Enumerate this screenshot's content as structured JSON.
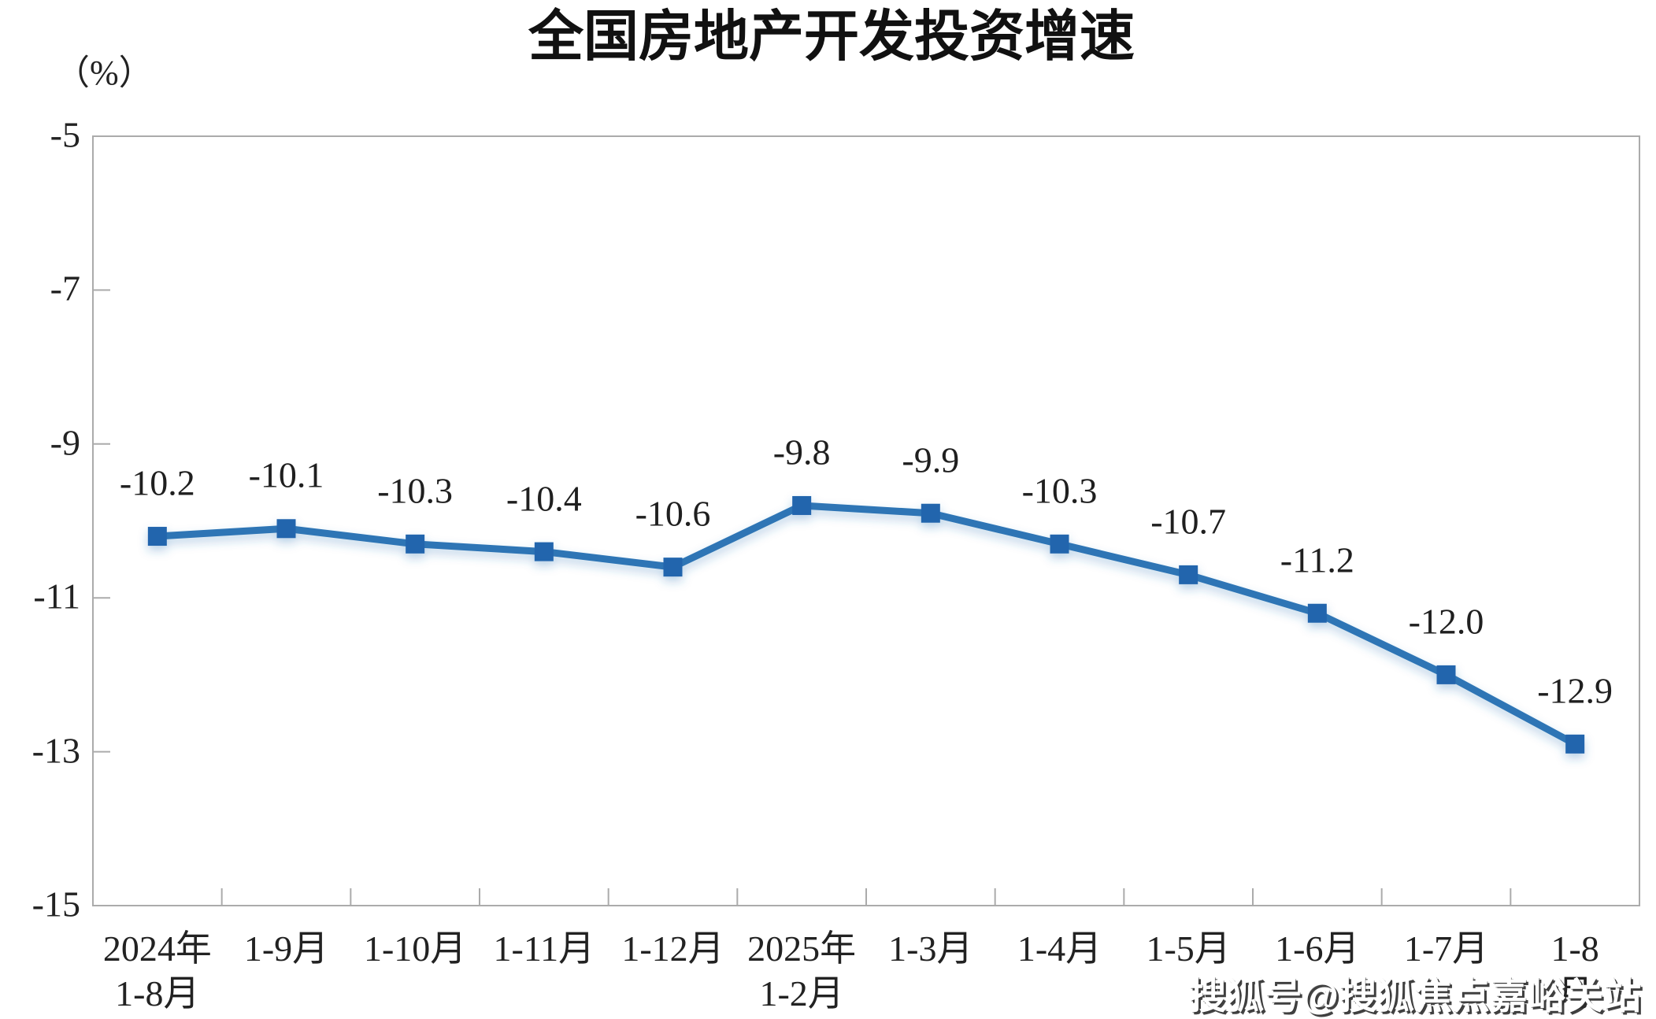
{
  "watermark": "搜狐号@搜狐焦点嘉峪关站",
  "chart_data": {
    "type": "line",
    "title": "全国房地产开发投资增速",
    "unit_label": "（%）",
    "categories": [
      "2024年\n1-8月",
      "1-9月",
      "1-10月",
      "1-11月",
      "1-12月",
      "2025年\n1-2月",
      "1-3月",
      "1-4月",
      "1-5月",
      "1-6月",
      "1-7月",
      "1-8月"
    ],
    "values": [
      -10.2,
      -10.1,
      -10.3,
      -10.4,
      -10.6,
      -9.8,
      -9.9,
      -10.3,
      -10.7,
      -11.2,
      -12.0,
      -12.9
    ],
    "point_labels": [
      "-10.2",
      "-10.1",
      "-10.3",
      "-10.4",
      "-10.6",
      "-9.8",
      "-9.9",
      "-10.3",
      "-10.7",
      "-11.2",
      "-12.0",
      "-12.9"
    ],
    "xlabel": "",
    "ylabel": "",
    "ylim": [
      -15,
      -5
    ],
    "yticks": [
      -5,
      -7,
      -9,
      -11,
      -13,
      -15
    ],
    "grid": false,
    "legend_position": "none",
    "line_color": "#2E74B5",
    "marker_color": "#2365AD",
    "axis_color": "#ABABAB",
    "text_color": "#222222"
  }
}
